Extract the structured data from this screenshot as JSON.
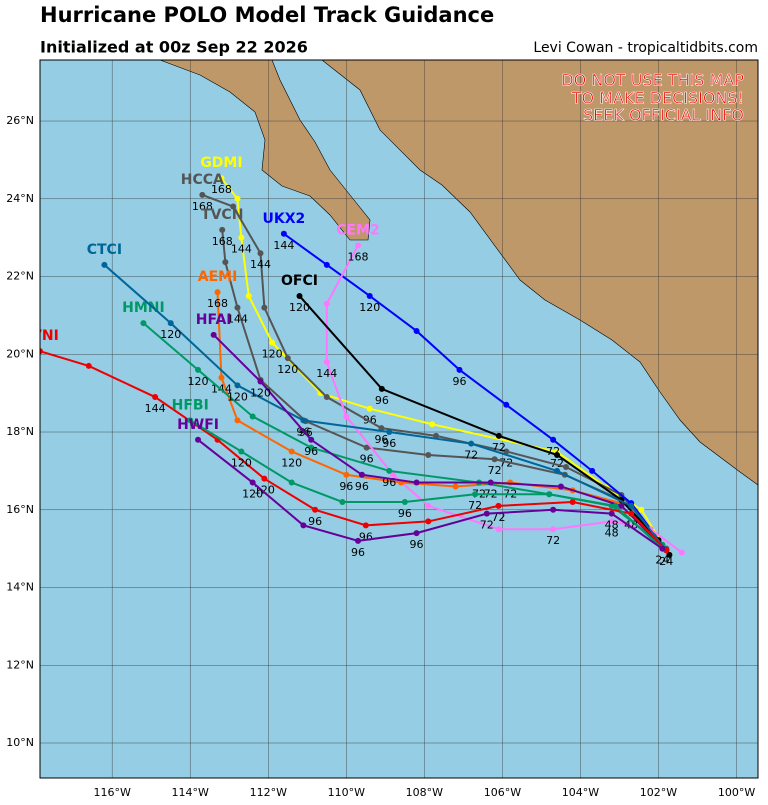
{
  "map": {
    "title": "Hurricane POLO Model Track Guidance",
    "subtitle": "Initialized at 00z Sep 22 2026",
    "credit": "Levi Cowan - tropicaltidbits.com",
    "warning": [
      "DO NOT USE THIS MAP",
      "TO MAKE DECISIONS!",
      "SEEK OFFICIAL INFO"
    ],
    "lonlim": [
      -117.85,
      -99.45
    ],
    "latlim": [
      9.1,
      27.57
    ],
    "lonticks": [
      {
        "value": -116,
        "label": "116°W"
      },
      {
        "value": -114,
        "label": "114°W"
      },
      {
        "value": -112,
        "label": "112°W"
      },
      {
        "value": -110,
        "label": "110°W"
      },
      {
        "value": -108,
        "label": "108°W"
      },
      {
        "value": -106,
        "label": "106°W"
      },
      {
        "value": -104,
        "label": "104°W"
      },
      {
        "value": -102,
        "label": "102°W"
      },
      {
        "value": -100,
        "label": "100°W"
      }
    ],
    "latticks": [
      {
        "value": 10,
        "label": "10°N"
      },
      {
        "value": 12,
        "label": "12°N"
      },
      {
        "value": 14,
        "label": "14°N"
      },
      {
        "value": 16,
        "label": "16°N"
      },
      {
        "value": 18,
        "label": "18°N"
      },
      {
        "value": 20,
        "label": "20°N"
      },
      {
        "value": 22,
        "label": "22°N"
      },
      {
        "value": 24,
        "label": "24°N"
      },
      {
        "value": 26,
        "label": "26°N"
      }
    ],
    "tracks": [
      {
        "name": "GDMI",
        "color": "#ffff00",
        "points": [
          {
            "lon": -113.2,
            "lat": 24.53,
            "hour": 168
          },
          {
            "lon": -112.79,
            "lat": 24.0
          },
          {
            "lon": -112.69,
            "lat": 23.0,
            "hour": 144
          },
          {
            "lon": -112.5,
            "lat": 21.5
          },
          {
            "lon": -111.9,
            "lat": 20.3,
            "hour": 120
          },
          {
            "lon": -110.66,
            "lat": 19.0
          },
          {
            "lon": -109.4,
            "lat": 18.6,
            "hour": 96
          },
          {
            "lon": -107.8,
            "lat": 18.2
          },
          {
            "lon": -104.6,
            "lat": 17.49,
            "hour": 72
          },
          {
            "lon": -103.34,
            "lat": 16.58
          },
          {
            "lon": -102.44,
            "lat": 16.0
          },
          {
            "lon": -101.72,
            "lat": 14.84
          }
        ]
      },
      {
        "name": "HCCA",
        "color": "#555555",
        "points": [
          {
            "lon": -113.69,
            "lat": 24.1,
            "hour": 168
          },
          {
            "lon": -112.9,
            "lat": 23.8
          },
          {
            "lon": -112.2,
            "lat": 22.6,
            "hour": 144
          },
          {
            "lon": -112.1,
            "lat": 21.2
          },
          {
            "lon": -111.5,
            "lat": 19.9,
            "hour": 120
          },
          {
            "lon": -110.5,
            "lat": 18.9
          },
          {
            "lon": -109.1,
            "lat": 18.1,
            "hour": 96
          },
          {
            "lon": -107.7,
            "lat": 17.9
          },
          {
            "lon": -105.9,
            "lat": 17.5,
            "hour": 72
          },
          {
            "lon": -104.37,
            "lat": 17.1
          },
          {
            "lon": -102.95,
            "lat": 16.38
          },
          {
            "lon": -101.8,
            "lat": 15.0
          }
        ]
      },
      {
        "name": "TVCN",
        "color": "#555555",
        "points": [
          {
            "lon": -113.18,
            "lat": 23.2,
            "hour": 168
          },
          {
            "lon": -113.1,
            "lat": 22.37
          },
          {
            "lon": -112.79,
            "lat": 21.2,
            "hour": 144
          },
          {
            "lon": -112.2,
            "lat": 19.34
          },
          {
            "lon": -111.04,
            "lat": 18.28,
            "hour": 96
          },
          {
            "lon": -109.48,
            "lat": 17.6,
            "hour": 96
          },
          {
            "lon": -107.9,
            "lat": 17.41
          },
          {
            "lon": -106.2,
            "lat": 17.3,
            "hour": 72
          },
          {
            "lon": -104.4,
            "lat": 16.9
          },
          {
            "lon": -102.95,
            "lat": 16.25
          },
          {
            "lon": -101.8,
            "lat": 14.96
          }
        ]
      },
      {
        "name": "UKX2",
        "color": "#0000ff",
        "points": [
          {
            "lon": -111.6,
            "lat": 23.1,
            "hour": 144
          },
          {
            "lon": -110.5,
            "lat": 22.3
          },
          {
            "lon": -109.4,
            "lat": 21.5,
            "hour": 120
          },
          {
            "lon": -108.2,
            "lat": 20.6
          },
          {
            "lon": -107.1,
            "lat": 19.6,
            "hour": 96
          },
          {
            "lon": -105.9,
            "lat": 18.7
          },
          {
            "lon": -104.7,
            "lat": 17.8,
            "hour": 72
          },
          {
            "lon": -103.7,
            "lat": 17.0
          },
          {
            "lon": -102.7,
            "lat": 16.17
          },
          {
            "lon": -101.8,
            "lat": 14.96
          }
        ]
      },
      {
        "name": "CEM2",
        "color": "#ff77ff",
        "points": [
          {
            "lon": -109.7,
            "lat": 22.8,
            "hour": 168
          },
          {
            "lon": -110.5,
            "lat": 21.3
          },
          {
            "lon": -110.5,
            "lat": 19.8,
            "hour": 144
          },
          {
            "lon": -110.0,
            "lat": 18.4
          },
          {
            "lon": -108.8,
            "lat": 16.9
          },
          {
            "lon": -107.9,
            "lat": 16.1
          },
          {
            "lon": -106.09,
            "lat": 15.5
          },
          {
            "lon": -104.7,
            "lat": 15.5,
            "hour": 72
          },
          {
            "lon": -103.2,
            "lat": 15.7,
            "hour": 48
          },
          {
            "lon": -102.2,
            "lat": 15.5
          },
          {
            "lon": -101.4,
            "lat": 14.9
          }
        ]
      },
      {
        "name": "AEMI",
        "color": "#ff6600",
        "points": [
          {
            "lon": -113.3,
            "lat": 21.6,
            "hour": 168
          },
          {
            "lon": -113.2,
            "lat": 19.4,
            "hour": 144
          },
          {
            "lon": -112.79,
            "lat": 18.3
          },
          {
            "lon": -111.4,
            "lat": 17.5,
            "hour": 120
          },
          {
            "lon": -110.0,
            "lat": 16.9,
            "hour": 96
          },
          {
            "lon": -108.6,
            "lat": 16.7
          },
          {
            "lon": -107.2,
            "lat": 16.6
          },
          {
            "lon": -105.8,
            "lat": 16.7,
            "hour": 72
          },
          {
            "lon": -104.2,
            "lat": 16.5
          },
          {
            "lon": -102.7,
            "lat": 16.1
          },
          {
            "lon": -101.8,
            "lat": 14.96
          }
        ]
      },
      {
        "name": "OFCI",
        "color": "#000000",
        "points": [
          {
            "lon": -111.2,
            "lat": 21.5,
            "hour": 120
          },
          {
            "lon": -109.09,
            "lat": 19.11,
            "hour": 96
          },
          {
            "lon": -106.09,
            "lat": 17.9,
            "hour": 72
          },
          {
            "lon": -104.6,
            "lat": 17.41
          },
          {
            "lon": -102.95,
            "lat": 16.25
          },
          {
            "lon": -102.0,
            "lat": 15.22
          },
          {
            "lon": -101.72,
            "lat": 14.84
          }
        ]
      },
      {
        "name": "HMNI",
        "color": "#009966",
        "points": [
          {
            "lon": -115.2,
            "lat": 20.8
          },
          {
            "lon": -113.8,
            "lat": 19.6,
            "hour": 120
          },
          {
            "lon": -112.4,
            "lat": 18.4
          },
          {
            "lon": -110.9,
            "lat": 17.6
          },
          {
            "lon": -108.9,
            "lat": 17.0,
            "hour": 96
          },
          {
            "lon": -106.6,
            "lat": 16.7,
            "hour": 72
          },
          {
            "lon": -104.8,
            "lat": 16.4
          },
          {
            "lon": -103.2,
            "lat": 16.1
          },
          {
            "lon": -101.9,
            "lat": 15.1
          }
        ]
      },
      {
        "name": "CTCI",
        "color": "#006699",
        "points": [
          {
            "lon": -116.2,
            "lat": 22.3
          },
          {
            "lon": -114.5,
            "lat": 20.8,
            "hour": 120
          },
          {
            "lon": -112.79,
            "lat": 19.2,
            "hour": 120
          },
          {
            "lon": -111.1,
            "lat": 18.3,
            "hour": 96
          },
          {
            "lon": -108.9,
            "lat": 18.0,
            "hour": 96
          },
          {
            "lon": -106.8,
            "lat": 17.7,
            "hour": 72
          },
          {
            "lon": -104.6,
            "lat": 17.0
          },
          {
            "lon": -102.7,
            "lat": 16.1
          },
          {
            "lon": -101.8,
            "lat": 14.96
          }
        ]
      },
      {
        "name": "HFAI",
        "color": "#660099",
        "points": [
          {
            "lon": -113.4,
            "lat": 20.5
          },
          {
            "lon": -112.2,
            "lat": 19.3,
            "hour": 120
          },
          {
            "lon": -110.9,
            "lat": 17.8,
            "hour": 96
          },
          {
            "lon": -109.6,
            "lat": 16.9,
            "hour": 96
          },
          {
            "lon": -108.2,
            "lat": 16.7
          },
          {
            "lon": -106.3,
            "lat": 16.7,
            "hour": 72
          },
          {
            "lon": -104.5,
            "lat": 16.6
          },
          {
            "lon": -102.95,
            "lat": 16.1
          },
          {
            "lon": -101.8,
            "lat": 14.96
          }
        ]
      },
      {
        "name": "AVNI",
        "color": "#ee0000",
        "points": [
          {
            "lon": -117.85,
            "lat": 20.08
          },
          {
            "lon": -116.6,
            "lat": 19.7
          },
          {
            "lon": -114.9,
            "lat": 18.9,
            "hour": 144
          },
          {
            "lon": -113.3,
            "lat": 17.8
          },
          {
            "lon": -112.1,
            "lat": 16.8,
            "hour": 120
          },
          {
            "lon": -110.8,
            "lat": 16.0,
            "hour": 96
          },
          {
            "lon": -109.5,
            "lat": 15.6,
            "hour": 96
          },
          {
            "lon": -107.9,
            "lat": 15.7
          },
          {
            "lon": -106.1,
            "lat": 16.1,
            "hour": 72
          },
          {
            "lon": -104.2,
            "lat": 16.2
          },
          {
            "lon": -102.7,
            "lat": 15.9,
            "hour": 48
          },
          {
            "lon": -101.8,
            "lat": 14.96,
            "hour": 24
          }
        ]
      },
      {
        "name": "HFBI",
        "color": "#009966",
        "points": [
          {
            "lon": -114.0,
            "lat": 18.3
          },
          {
            "lon": -112.69,
            "lat": 17.5,
            "hour": 120
          },
          {
            "lon": -111.4,
            "lat": 16.7
          },
          {
            "lon": -110.1,
            "lat": 16.2
          },
          {
            "lon": -108.5,
            "lat": 16.2,
            "hour": 96
          },
          {
            "lon": -106.7,
            "lat": 16.4,
            "hour": 72
          },
          {
            "lon": -104.8,
            "lat": 16.4
          },
          {
            "lon": -103.1,
            "lat": 16.1
          },
          {
            "lon": -101.9,
            "lat": 15.0
          }
        ]
      },
      {
        "name": "HWFI",
        "color": "#660099",
        "points": [
          {
            "lon": -113.8,
            "lat": 17.8
          },
          {
            "lon": -112.4,
            "lat": 16.7,
            "hour": 120
          },
          {
            "lon": -111.1,
            "lat": 15.6
          },
          {
            "lon": -109.7,
            "lat": 15.2,
            "hour": 96
          },
          {
            "lon": -108.2,
            "lat": 15.4,
            "hour": 96
          },
          {
            "lon": -106.4,
            "lat": 15.9,
            "hour": 72
          },
          {
            "lon": -104.7,
            "lat": 16.0
          },
          {
            "lon": -103.2,
            "lat": 15.9,
            "hour": 48
          },
          {
            "lon": -101.9,
            "lat": 15.0,
            "hour": 24
          }
        ]
      }
    ]
  }
}
